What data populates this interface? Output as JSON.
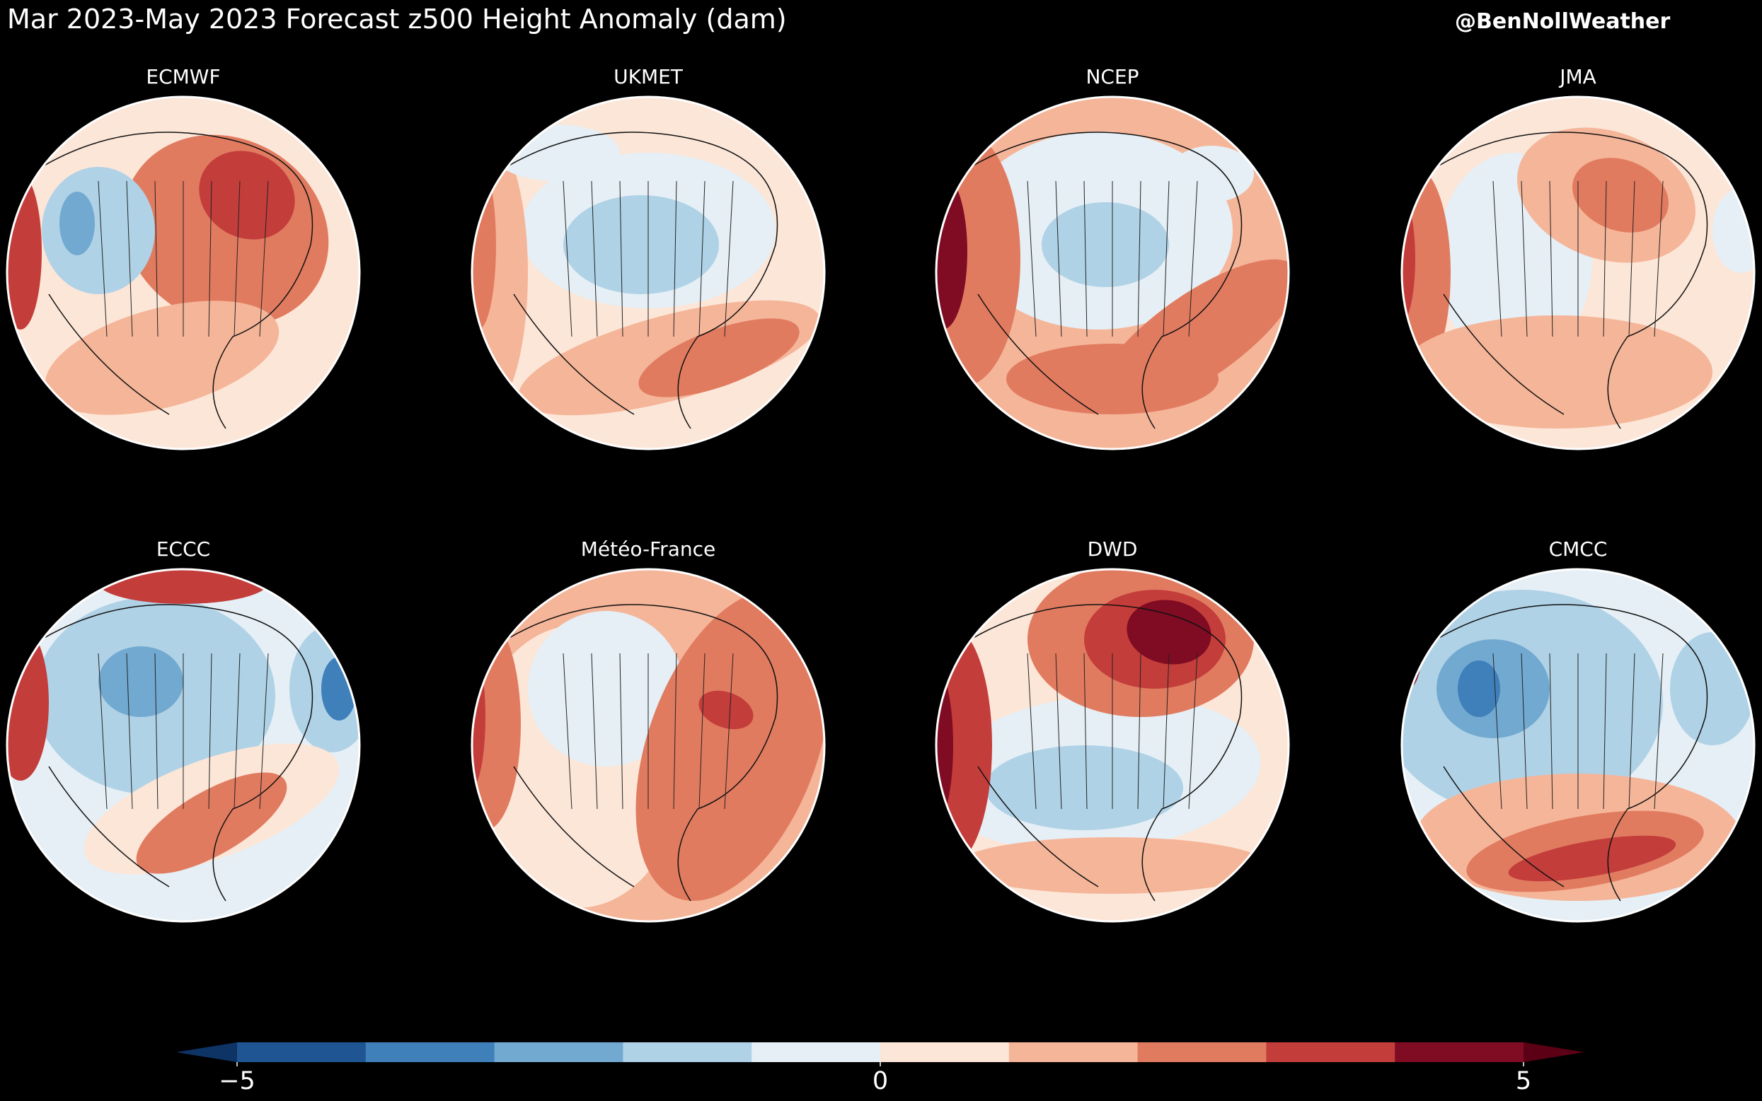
{
  "header": {
    "title": "Mar 2023-May 2023 Forecast z500 Height Anomaly (dam)",
    "handle": "@BenNollWeather"
  },
  "panels": [
    {
      "title": "ECMWF"
    },
    {
      "title": "UKMET"
    },
    {
      "title": "NCEP"
    },
    {
      "title": "JMA"
    },
    {
      "title": "ECCC"
    },
    {
      "title": "Météo-France"
    },
    {
      "title": "DWD"
    },
    {
      "title": "CMCC"
    }
  ],
  "colorbar": {
    "lim": [
      -5,
      5
    ],
    "ticks": [
      {
        "value": -5,
        "label": "−5"
      },
      0,
      5
    ],
    "colors": [
      "#1f5593",
      "#3f80bb",
      "#72a9d0",
      "#b0d2e6",
      "#e5eff5",
      "#fce6d8",
      "#f5b599",
      "#e17b60",
      "#c33d3b",
      "#7f0c22"
    ],
    "under": "#0e3365",
    "over": "#5c0015"
  }
}
